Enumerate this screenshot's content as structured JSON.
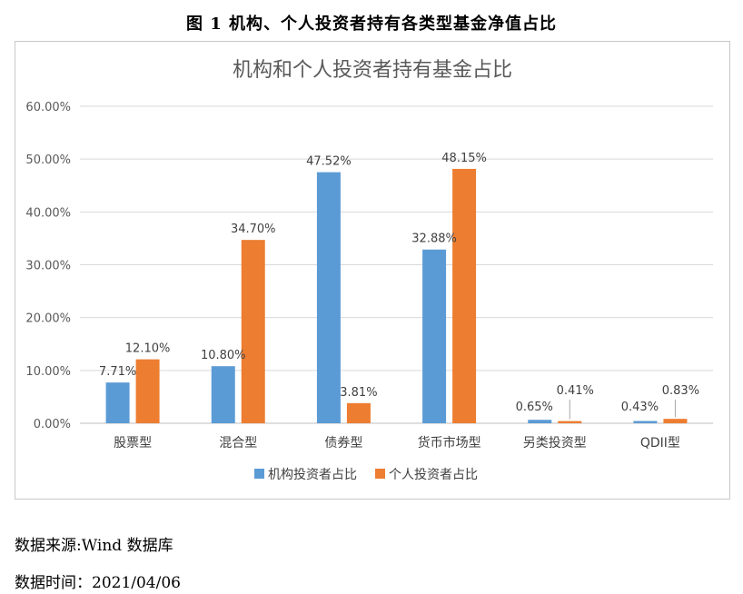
{
  "figure_title": "图 1 机构、个人投资者持有各类型基金净值占比",
  "source_note": "数据来源:Wind 数据库",
  "date_note": "数据时间：2021/04/06",
  "chart_data": {
    "type": "bar",
    "title": "机构和个人投资者持有基金占比",
    "categories": [
      "股票型",
      "混合型",
      "债券型",
      "货币市场型",
      "另类投资型",
      "QDII型"
    ],
    "series": [
      {
        "name": "机构投资者占比",
        "color": "#5b9bd5",
        "values": [
          7.71,
          10.8,
          47.52,
          32.88,
          0.65,
          0.43
        ],
        "labels": [
          "7.71%",
          "10.80%",
          "47.52%",
          "32.88%",
          "0.65%",
          "0.43%"
        ]
      },
      {
        "name": "个人投资者占比",
        "color": "#ed7d31",
        "values": [
          12.1,
          34.7,
          3.81,
          48.15,
          0.41,
          0.83
        ],
        "labels": [
          "12.10%",
          "34.70%",
          "3.81%",
          "48.15%",
          "0.41%",
          "0.83%"
        ]
      }
    ],
    "ylim": [
      0,
      60
    ],
    "yticks": [
      "0.00%",
      "10.00%",
      "20.00%",
      "30.00%",
      "40.00%",
      "50.00%",
      "60.00%"
    ],
    "grid": true,
    "legend": "bottom"
  }
}
